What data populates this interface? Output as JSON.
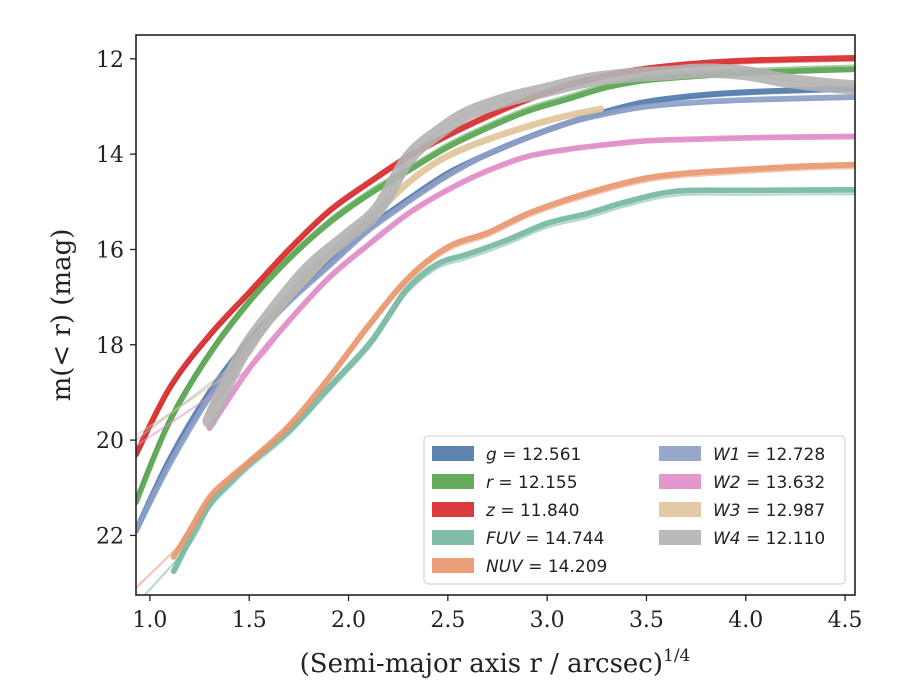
{
  "chart_data": {
    "type": "line",
    "xlabel": "(Semi-major axis r / arcsec)",
    "xlabel_superscript": "1/4",
    "ylabel": "m(< r) (mag)",
    "xlim": [
      0.93,
      4.55
    ],
    "ylim": [
      23.25,
      11.5
    ],
    "y_inverted": true,
    "x_ticks": [
      "1.0",
      "1.5",
      "2.0",
      "2.5",
      "3.0",
      "3.5",
      "4.0",
      "4.5"
    ],
    "y_ticks": [
      "12",
      "14",
      "16",
      "18",
      "20",
      "22"
    ],
    "grid": false,
    "legend_position": "lower-right",
    "legend_columns": 2,
    "series": [
      {
        "name": "g = 12.561",
        "color": "#4c78a8",
        "band_width": 0.12,
        "x": [
          0.93,
          1.1,
          1.3,
          1.5,
          1.7,
          1.9,
          2.1,
          2.3,
          2.5,
          2.7,
          2.9,
          3.1,
          3.3,
          3.5,
          3.8,
          4.1,
          4.55
        ],
        "y": [
          21.9,
          20.4,
          19.0,
          17.9,
          17.05,
          16.3,
          15.55,
          14.95,
          14.4,
          14.0,
          13.65,
          13.35,
          13.1,
          12.9,
          12.75,
          12.68,
          12.62
        ]
      },
      {
        "name": "r = 12.155",
        "color": "#54a24b",
        "band_width": 0.12,
        "x": [
          0.93,
          1.1,
          1.3,
          1.5,
          1.7,
          1.9,
          2.1,
          2.3,
          2.5,
          2.7,
          2.9,
          3.1,
          3.3,
          3.5,
          3.8,
          4.1,
          4.55
        ],
        "y": [
          21.3,
          19.6,
          18.2,
          17.1,
          16.2,
          15.45,
          14.85,
          14.35,
          13.85,
          13.45,
          13.1,
          12.85,
          12.6,
          12.45,
          12.35,
          12.28,
          12.22
        ]
      },
      {
        "name": "z = 11.840",
        "color": "#d62728",
        "band_width": 0.12,
        "x": [
          0.93,
          1.1,
          1.3,
          1.5,
          1.7,
          1.9,
          2.1,
          2.3,
          2.5,
          2.7,
          2.9,
          3.1,
          3.3,
          3.5,
          3.8,
          4.1,
          4.55
        ],
        "y": [
          20.3,
          18.9,
          17.8,
          16.9,
          16.0,
          15.2,
          14.6,
          14.05,
          13.6,
          13.2,
          12.85,
          12.55,
          12.35,
          12.2,
          12.08,
          12.02,
          11.98
        ]
      },
      {
        "name": "FUV = 14.744",
        "color": "#72b7a1",
        "band_width": 0.12,
        "x": [
          1.12,
          1.2,
          1.3,
          1.4,
          1.5,
          1.7,
          1.9,
          2.1,
          2.2,
          2.3,
          2.45,
          2.6,
          2.8,
          3.0,
          3.2,
          3.4,
          3.65,
          4.0,
          4.55
        ],
        "y": [
          22.75,
          22.1,
          21.35,
          20.9,
          20.5,
          19.8,
          18.9,
          18.0,
          17.4,
          16.8,
          16.3,
          16.1,
          15.8,
          15.45,
          15.25,
          15.0,
          14.78,
          14.76,
          14.75
        ]
      },
      {
        "name": "NUV = 14.209",
        "color": "#e8956a",
        "band_width": 0.12,
        "x": [
          1.12,
          1.2,
          1.3,
          1.4,
          1.5,
          1.7,
          1.9,
          2.1,
          2.3,
          2.5,
          2.7,
          2.9,
          3.1,
          3.3,
          3.5,
          3.7,
          4.0,
          4.3,
          4.55
        ],
        "y": [
          22.45,
          21.9,
          21.2,
          20.8,
          20.45,
          19.7,
          18.7,
          17.6,
          16.6,
          15.95,
          15.65,
          15.25,
          14.95,
          14.7,
          14.5,
          14.4,
          14.32,
          14.25,
          14.22
        ]
      },
      {
        "name": "W1 = 12.728",
        "color": "#8d9fc8",
        "band_width": 0.12,
        "x": [
          0.93,
          1.1,
          1.3,
          1.5,
          1.7,
          1.9,
          2.1,
          2.3,
          2.5,
          2.7,
          2.9,
          3.1,
          3.3,
          3.5,
          3.8,
          4.1,
          4.55
        ],
        "y": [
          21.9,
          20.5,
          19.1,
          18.0,
          17.1,
          16.35,
          15.6,
          15.0,
          14.45,
          14.0,
          13.65,
          13.35,
          13.15,
          13.0,
          12.9,
          12.85,
          12.8
        ]
      },
      {
        "name": "W2 = 13.632",
        "color": "#e08cc6",
        "band_width": 0.12,
        "x": [
          1.3,
          1.5,
          1.7,
          1.9,
          2.1,
          2.3,
          2.5,
          2.7,
          2.9,
          3.1,
          3.3,
          3.5,
          3.8,
          4.1,
          4.55
        ],
        "y": [
          19.75,
          18.5,
          17.5,
          16.6,
          15.9,
          15.25,
          14.75,
          14.35,
          14.05,
          13.9,
          13.8,
          13.72,
          13.68,
          13.65,
          13.63
        ]
      },
      {
        "name": "W3 = 12.987",
        "color": "#e0c49a",
        "band_width": 0.14,
        "x": [
          1.3,
          1.45,
          1.6,
          1.8,
          2.0,
          2.15,
          2.3,
          2.45,
          2.6,
          2.8,
          3.0,
          3.15,
          3.27
        ],
        "y": [
          19.4,
          18.4,
          17.5,
          16.55,
          15.75,
          15.2,
          14.6,
          14.15,
          13.85,
          13.55,
          13.3,
          13.15,
          13.05
        ]
      },
      {
        "name": "W4 = 12.110",
        "color": "#b3b3b3",
        "band_width": 0.3,
        "x": [
          1.3,
          1.45,
          1.6,
          1.8,
          2.0,
          2.15,
          2.3,
          2.45,
          2.6,
          2.8,
          3.0,
          3.2,
          3.4,
          3.6,
          3.8,
          4.0,
          4.2,
          4.4,
          4.55
        ],
        "y": [
          19.6,
          18.3,
          17.4,
          16.4,
          15.7,
          15.15,
          14.1,
          13.55,
          13.15,
          12.85,
          12.65,
          12.45,
          12.35,
          12.3,
          12.25,
          12.3,
          12.45,
          12.55,
          12.6
        ]
      }
    ]
  }
}
